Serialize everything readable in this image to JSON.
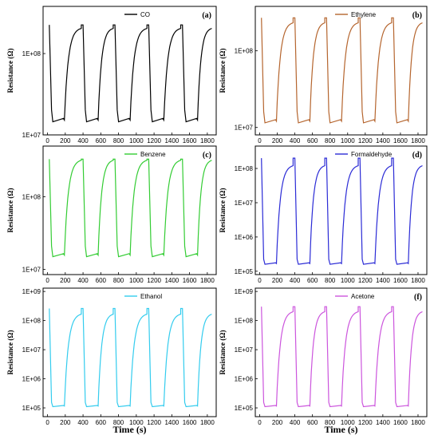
{
  "chart_data": [
    {
      "type": "line",
      "panel_label": "(a)",
      "series_name": "CO",
      "color": "#000000",
      "ylabel": "Resistance (Ω)",
      "xlabel": "",
      "y_scale": "log",
      "xlim": [
        -50,
        1900
      ],
      "ylim": [
        10000000,
        380000000
      ],
      "x_ticks": [
        0,
        200,
        400,
        600,
        800,
        1000,
        1200,
        1400,
        1600,
        1800
      ],
      "y_ticks": [
        {
          "v": 10000000,
          "label": "1E+07"
        },
        {
          "v": 100000000,
          "label": "1E+08"
        }
      ],
      "cycles": [
        [
          20,
          380
        ],
        [
          400,
          740
        ],
        [
          760,
          1120
        ],
        [
          1140,
          1500
        ],
        [
          1520,
          1850
        ]
      ],
      "low": 14500000,
      "high": 225000000,
      "base": 210000000,
      "step_top": 225000000
    },
    {
      "type": "line",
      "panel_label": "(b)",
      "series_name": "Ethylene",
      "color": "#b5652e",
      "ylabel": "Resistance (Ω)",
      "xlabel": "",
      "y_scale": "log",
      "xlim": [
        -50,
        1900
      ],
      "ylim": [
        8000000,
        380000000
      ],
      "x_ticks": [
        0,
        200,
        400,
        600,
        800,
        1000,
        1200,
        1400,
        1600,
        1800
      ],
      "y_ticks": [
        {
          "v": 10000000,
          "label": "1E+07"
        },
        {
          "v": 100000000,
          "label": "1E+08"
        }
      ],
      "cycles": [
        [
          20,
          380
        ],
        [
          400,
          740
        ],
        [
          760,
          1120
        ],
        [
          1140,
          1500
        ],
        [
          1520,
          1850
        ]
      ],
      "low": 11500000,
      "high": 270000000,
      "base": 240000000,
      "step_top": 270000000
    },
    {
      "type": "line",
      "panel_label": "(c)",
      "series_name": "Benzene",
      "color": "#33cc33",
      "ylabel": "Resistance (Ω)",
      "xlabel": "",
      "y_scale": "log",
      "xlim": [
        -50,
        1900
      ],
      "ylim": [
        8500000,
        500000000
      ],
      "x_ticks": [
        0,
        200,
        400,
        600,
        800,
        1000,
        1200,
        1400,
        1600,
        1800
      ],
      "y_ticks": [
        {
          "v": 10000000,
          "label": "1E+07"
        },
        {
          "v": 100000000,
          "label": "1E+08"
        }
      ],
      "cycles": [
        [
          20,
          380
        ],
        [
          400,
          740
        ],
        [
          760,
          1120
        ],
        [
          1140,
          1500
        ],
        [
          1520,
          1850
        ]
      ],
      "low": 15000000,
      "high": 330000000,
      "base": 330000000,
      "step_top": 330000000
    },
    {
      "type": "line",
      "panel_label": "(d)",
      "series_name": "Formaldehyde",
      "color": "#2b2bd6",
      "ylabel": "Resistance (Ω)",
      "xlabel": "",
      "y_scale": "log",
      "xlim": [
        -50,
        1900
      ],
      "ylim": [
        80000,
        450000000
      ],
      "x_ticks": [
        0,
        200,
        400,
        600,
        800,
        1000,
        1200,
        1400,
        1600,
        1800
      ],
      "y_ticks": [
        {
          "v": 100000,
          "label": "1E+05"
        },
        {
          "v": 1000000,
          "label": "1E+06"
        },
        {
          "v": 10000000,
          "label": "1E+07"
        },
        {
          "v": 100000000,
          "label": "1E+08"
        }
      ],
      "cycles": [
        [
          20,
          380
        ],
        [
          400,
          740
        ],
        [
          760,
          1120
        ],
        [
          1140,
          1500
        ],
        [
          1520,
          1850
        ]
      ],
      "low": 160000,
      "high": 200000000,
      "base": 130000000,
      "step_top": 200000000
    },
    {
      "type": "line",
      "panel_label": "",
      "series_name": "Ethanol",
      "color": "#33ccee",
      "ylabel": "Resistance (Ω)",
      "xlabel": "",
      "y_scale": "log",
      "xlim": [
        -50,
        1900
      ],
      "ylim": [
        50000,
        1300000000
      ],
      "x_ticks": [
        0,
        200,
        400,
        600,
        800,
        1000,
        1200,
        1400,
        1600,
        1800
      ],
      "y_ticks": [
        {
          "v": 100000,
          "label": "1E+05"
        },
        {
          "v": 1000000,
          "label": "1E+06"
        },
        {
          "v": 10000000,
          "label": "1E+07"
        },
        {
          "v": 100000000,
          "label": "1E+08"
        },
        {
          "v": 1000000000,
          "label": "1E+09"
        }
      ],
      "cycles": [
        [
          20,
          380
        ],
        [
          400,
          740
        ],
        [
          760,
          1120
        ],
        [
          1140,
          1500
        ],
        [
          1520,
          1850
        ]
      ],
      "low": 110000,
      "high": 260000000,
      "base": 180000000,
      "step_top": 260000000
    },
    {
      "type": "line",
      "panel_label": "(f)",
      "series_name": "Acetone",
      "color": "#cc55dd",
      "ylabel": "Resistance (Ω)",
      "xlabel": "",
      "y_scale": "log",
      "xlim": [
        -50,
        1900
      ],
      "ylim": [
        50000,
        1300000000
      ],
      "x_ticks": [
        0,
        200,
        400,
        600,
        800,
        1000,
        1200,
        1400,
        1600,
        1800
      ],
      "y_ticks": [
        {
          "v": 100000,
          "label": "1E+05"
        },
        {
          "v": 1000000,
          "label": "1E+06"
        },
        {
          "v": 10000000,
          "label": "1E+07"
        },
        {
          "v": 100000000,
          "label": "1E+08"
        },
        {
          "v": 1000000000,
          "label": "1E+09"
        }
      ],
      "cycles": [
        [
          20,
          380
        ],
        [
          400,
          740
        ],
        [
          760,
          1120
        ],
        [
          1140,
          1500
        ],
        [
          1520,
          1850
        ]
      ],
      "low": 110000,
      "high": 300000000,
      "base": 220000000,
      "step_top": 300000000
    }
  ],
  "shared_xlabel": "Time (s)"
}
